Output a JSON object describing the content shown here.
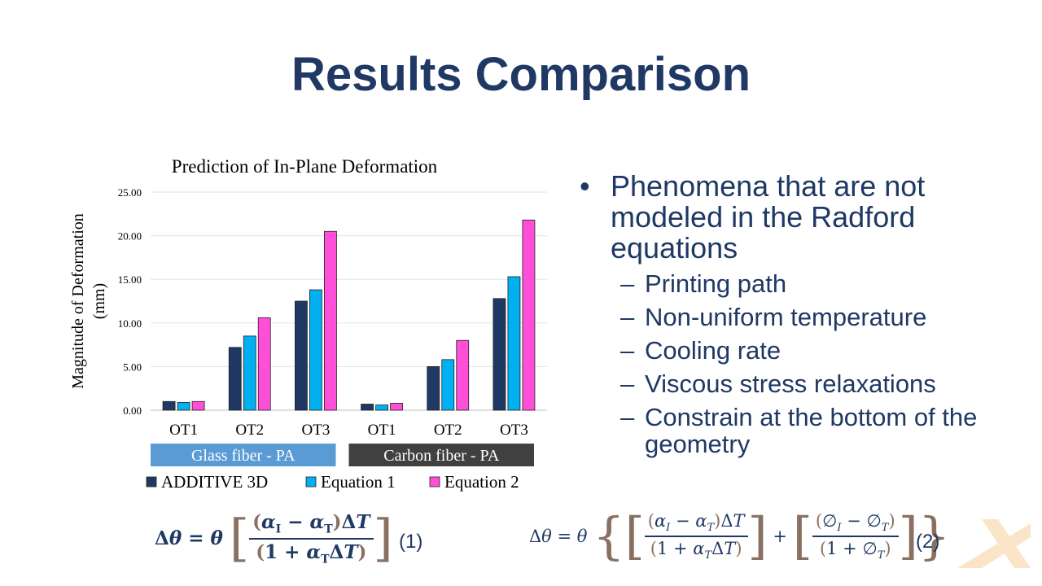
{
  "slide": {
    "title": "Results Comparison"
  },
  "chart_data": {
    "type": "bar",
    "title": "Prediction of In-Plane Deformation",
    "ylabel_line1": "Magnitude of Deformation",
    "ylabel_line2": "(mm)",
    "xlabel": "",
    "ylim": [
      0,
      25
    ],
    "yticks": [
      "0.00",
      "5.00",
      "10.00",
      "15.00",
      "20.00",
      "25.00"
    ],
    "ytick_values": [
      0,
      5,
      10,
      15,
      20,
      25
    ],
    "grid": true,
    "legend_position": "bottom",
    "categories": [
      "OT1",
      "OT2",
      "OT3",
      "OT1",
      "OT2",
      "OT3"
    ],
    "groups": [
      {
        "label": "Glass fiber - PA",
        "color": "#5b9bd5",
        "span": [
          0,
          2
        ]
      },
      {
        "label": "Carbon fiber - PA",
        "color": "#404040",
        "span": [
          3,
          5
        ]
      }
    ],
    "series": [
      {
        "name": "ADDITIVE 3D",
        "color": "#1f3864",
        "values": [
          1.0,
          7.2,
          12.5,
          0.7,
          5.0,
          12.8
        ]
      },
      {
        "name": "Equation 1",
        "color": "#00b0f0",
        "values": [
          0.9,
          8.5,
          13.8,
          0.6,
          5.8,
          15.3
        ]
      },
      {
        "name": "Equation 2",
        "color": "#ff4fd8",
        "values": [
          1.0,
          10.6,
          20.5,
          0.8,
          8.0,
          21.8
        ]
      }
    ]
  },
  "bullets": {
    "main": "Phenomena that are not modeled in the Radford equations",
    "subs": [
      "Printing path",
      "Non-uniform temperature",
      "Cooling rate",
      "Viscous stress relaxations",
      "Constrain at the bottom of the geometry"
    ]
  },
  "equations": {
    "eq1_number": "(1)",
    "eq2_number": "(2)"
  },
  "colors": {
    "title": "#1f3864",
    "logo": "#fbe5c8"
  }
}
